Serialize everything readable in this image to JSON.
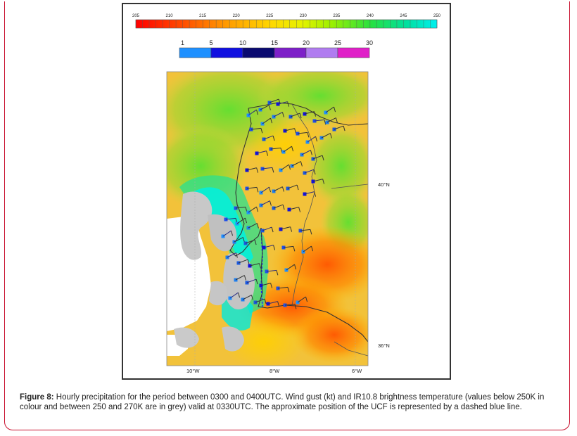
{
  "colorbar_temperature": {
    "ticks": [
      "205",
      "210",
      "215",
      "220",
      "225",
      "230",
      "235",
      "240",
      "245",
      "250"
    ]
  },
  "colorbar_wind_gust": {
    "ticks": [
      "1",
      "5",
      "10",
      "15",
      "20",
      "25",
      "30"
    ],
    "colors": [
      "#1e90ff",
      "#1010e0",
      "#0a0a70",
      "#7d1fc8",
      "#b07cf0",
      "#e020c8"
    ]
  },
  "map": {
    "lat_labels": [
      "40°N",
      "36°N"
    ],
    "lon_labels": [
      "10°W",
      "8°W",
      "6°W"
    ]
  },
  "caption": {
    "label": "Figure 8:",
    "text": " Hourly precipitation for the period between 0300 and 0400UTC. Wind gust (kt) and IR10.8 brightness temperature (values below 250K in colour and between 250 and 270K are in grey) valid at 0330UTC. The approximate position of the UCF is represented by a dashed blue line."
  }
}
